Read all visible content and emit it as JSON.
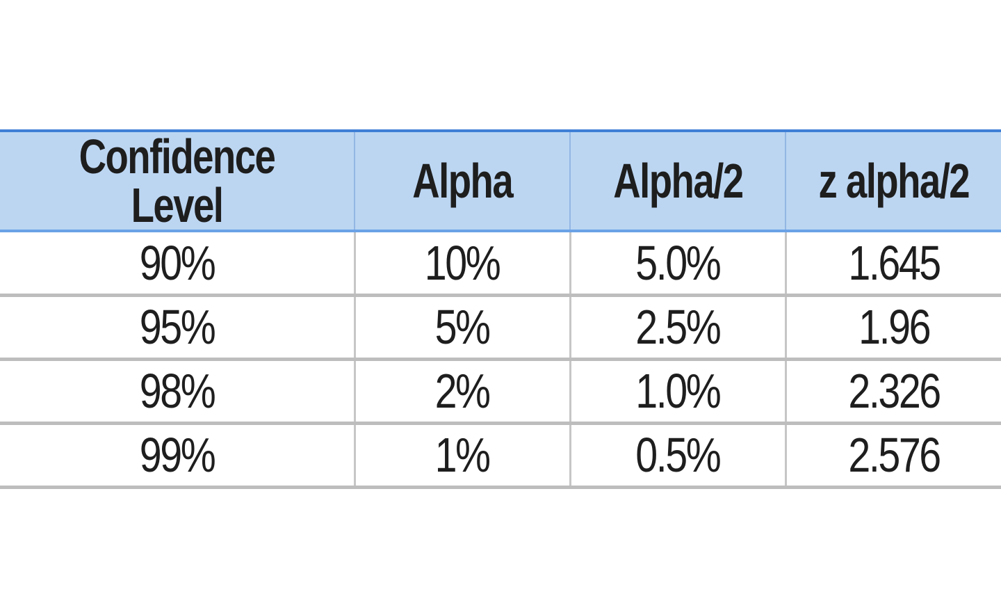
{
  "table": {
    "headers": [
      "Confidence Level",
      "Alpha",
      "Alpha/2",
      "z alpha/2"
    ],
    "rows": [
      [
        "90%",
        "10%",
        "5.0%",
        "1.645"
      ],
      [
        "95%",
        "5%",
        "2.5%",
        "1.96"
      ],
      [
        "98%",
        "2%",
        "1.0%",
        "2.326"
      ],
      [
        "99%",
        "1%",
        "0.5%",
        "2.576"
      ]
    ]
  },
  "colors": {
    "header_bg": "#bcd6f2",
    "header_border": "#3f7fd6",
    "row_border": "#bdbdbd"
  }
}
